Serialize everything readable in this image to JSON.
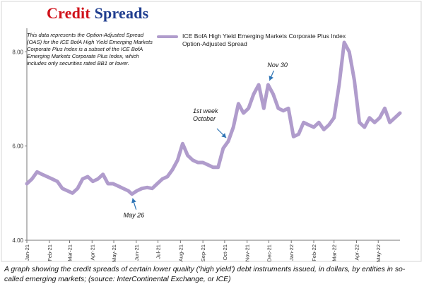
{
  "header": {
    "title_word1": "Credit",
    "title_word2": "Spreads"
  },
  "note": "This data represents the Option-Adjusted Spread (OAS) for the ICE BofA High Yield Emerging Markets Corporate Plus Index is a subset of the ICE BofA Emerging Markets Corporate Plus Index, which includes only securities rated BB1 or lower.",
  "caption": "A graph showing the credit spreads of certain lower quality ('high yield') debt instruments issued, in dollars, by entities in so-called emerging markets; (source: InterContinental Exchange, or ICE)",
  "colors": {
    "line": "#b09ccc",
    "title_word1": "#d0121b",
    "title_word2": "#1f3d8f",
    "arrow": "#2e74b5"
  },
  "chart_data": {
    "type": "line",
    "title": "Credit Spreads",
    "ylim": [
      4.0,
      8.5
    ],
    "yticks": [
      4.0,
      6.0,
      8.0
    ],
    "ytick_labels": [
      "4.00",
      "6.00",
      "8.00"
    ],
    "xlim": [
      "2021-01-01",
      "2022-05-31"
    ],
    "x_tick_labels": [
      "Jan-21",
      "Feb-21",
      "Mar-21",
      "Apr-21",
      "May-21",
      "Jun-21",
      "Jul-21",
      "Aug-21",
      "Sep-21",
      "Oct-21",
      "Nov-21",
      "Dec-21",
      "Jan-22",
      "Feb-22",
      "Mar-22",
      "Apr-22",
      "May-22"
    ],
    "x_tick_dates": [
      "2021-01-01",
      "2021-02-01",
      "2021-03-01",
      "2021-04-01",
      "2021-05-01",
      "2021-06-01",
      "2021-07-01",
      "2021-08-01",
      "2021-09-01",
      "2021-10-01",
      "2021-11-01",
      "2021-12-01",
      "2022-01-01",
      "2022-02-01",
      "2022-03-01",
      "2022-04-01",
      "2022-05-01"
    ],
    "grid": false,
    "legend_position": "top",
    "series": [
      {
        "name": "ICE BofA High Yield Emerging Markets Corporate Plus Index Option-Adjusted Spread",
        "x": [
          "2021-01-01",
          "2021-01-08",
          "2021-01-15",
          "2021-01-22",
          "2021-01-29",
          "2021-02-05",
          "2021-02-12",
          "2021-02-19",
          "2021-02-26",
          "2021-03-05",
          "2021-03-12",
          "2021-03-19",
          "2021-03-26",
          "2021-04-02",
          "2021-04-09",
          "2021-04-16",
          "2021-04-23",
          "2021-04-30",
          "2021-05-07",
          "2021-05-14",
          "2021-05-21",
          "2021-05-26",
          "2021-06-02",
          "2021-06-09",
          "2021-06-16",
          "2021-06-23",
          "2021-06-30",
          "2021-07-07",
          "2021-07-14",
          "2021-07-21",
          "2021-07-28",
          "2021-08-04",
          "2021-08-11",
          "2021-08-18",
          "2021-08-25",
          "2021-09-01",
          "2021-09-08",
          "2021-09-15",
          "2021-09-22",
          "2021-09-29",
          "2021-10-06",
          "2021-10-13",
          "2021-10-20",
          "2021-10-27",
          "2021-11-03",
          "2021-11-10",
          "2021-11-17",
          "2021-11-24",
          "2021-11-30",
          "2021-12-07",
          "2021-12-14",
          "2021-12-21",
          "2021-12-28",
          "2022-01-04",
          "2022-01-11",
          "2022-01-18",
          "2022-01-25",
          "2022-02-01",
          "2022-02-08",
          "2022-02-15",
          "2022-02-22",
          "2022-03-01",
          "2022-03-08",
          "2022-03-15",
          "2022-03-22",
          "2022-03-29",
          "2022-04-05",
          "2022-04-12",
          "2022-04-19",
          "2022-04-26",
          "2022-05-03",
          "2022-05-10",
          "2022-05-17",
          "2022-05-24",
          "2022-05-31"
        ],
        "y": [
          5.2,
          5.3,
          5.45,
          5.4,
          5.35,
          5.3,
          5.25,
          5.1,
          5.05,
          5.0,
          5.1,
          5.3,
          5.35,
          5.25,
          5.3,
          5.4,
          5.2,
          5.2,
          5.15,
          5.1,
          5.05,
          4.98,
          5.05,
          5.1,
          5.12,
          5.1,
          5.2,
          5.3,
          5.35,
          5.5,
          5.7,
          6.05,
          5.8,
          5.7,
          5.65,
          5.65,
          5.6,
          5.55,
          5.55,
          5.95,
          6.1,
          6.4,
          6.9,
          6.7,
          6.8,
          7.1,
          7.3,
          6.8,
          7.3,
          7.1,
          6.8,
          6.75,
          6.8,
          6.2,
          6.25,
          6.5,
          6.45,
          6.4,
          6.5,
          6.35,
          6.45,
          6.6,
          7.3,
          8.2,
          8.0,
          7.4,
          6.5,
          6.4,
          6.6,
          6.5,
          6.6,
          6.8,
          6.5,
          6.6,
          6.7
        ]
      }
    ],
    "annotations": [
      {
        "text": "May 26",
        "x": "2021-05-26",
        "y": 4.98
      },
      {
        "text": "1st week October",
        "x": "2021-10-06",
        "y": 6.1
      },
      {
        "text": "Nov 30",
        "x": "2021-11-30",
        "y": 7.3
      }
    ]
  }
}
